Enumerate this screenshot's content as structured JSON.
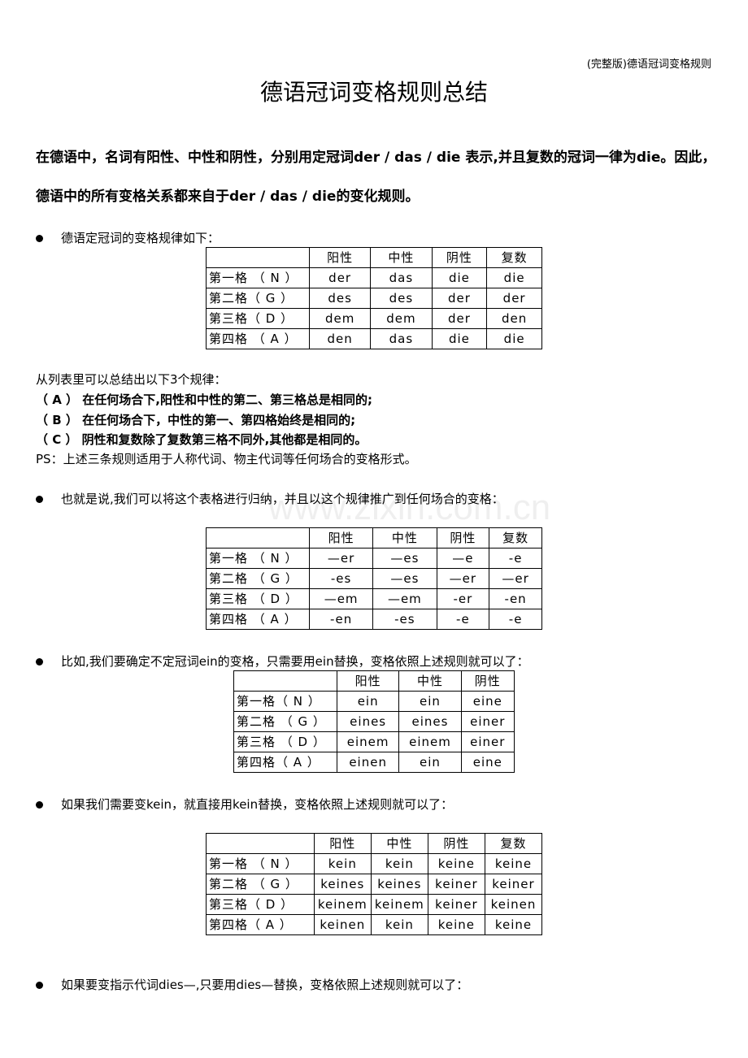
{
  "header_note": "(完整版)德语冠词变格规则",
  "title": "德语冠词变格规则总结",
  "intro": "在德语中，名词有阳性、中性和阴性，分别用定冠词der / das / die 表示,并且复数的冠词一律为die。因此，德语中的所有变格关系都来自于der / das / die的变化规则。",
  "watermark": "www.zixin.com.cn",
  "bullets": [
    "德语定冠词的变格规律如下：",
    "也就是说,我们可以将这个表格进行归纳，并且以这个规律推广到任何场合的变格：",
    "比如,我们要确定不定冠词ein的变格，只需要用ein替换，变格依照上述规则就可以了：",
    "如果我们需要变kein，就直接用kein替换，变格依照上述规则就可以了：",
    "如果要变指示代词dies—,只要用dies—替换，变格依照上述规则就可以了："
  ],
  "rules_intro": "从列表里可以总结出以下3个规律：",
  "rules": [
    "（ A ） 在任何场合下,阳性和中性的第二、第三格总是相同的;",
    "（ B ） 在任何场合下，中性的第一、第四格始终是相同的;",
    "（ C ） 阴性和复数除了复数第三格不同外,其他都是相同的。"
  ],
  "ps": "PS：上述三条规则适用于人称代词、物主代词等任何场合的变格形式。",
  "tables": [
    {
      "headers": [
        "",
        "阳性",
        "中性",
        "阴性",
        "复数"
      ],
      "rows": [
        [
          "第一格  （ N ）",
          "der",
          "das",
          "die",
          "die"
        ],
        [
          "第二格（ G ）",
          "des",
          "des",
          "der",
          "der"
        ],
        [
          "第三格（ D ）",
          "dem",
          "dem",
          "der",
          "den"
        ],
        [
          "第四格  （ A ）",
          "den",
          "das",
          "die",
          "die"
        ]
      ]
    },
    {
      "headers": [
        "",
        "阳性",
        "中性",
        "阴性",
        "复数"
      ],
      "rows": [
        [
          "第一格  （ N ）",
          "—er",
          "—es",
          "—e",
          "-e"
        ],
        [
          "第二格  （ G ）",
          "-es",
          "—es",
          "—er",
          "—er"
        ],
        [
          "第三格  （ D ）",
          "—em",
          "—em",
          "-er",
          "-en"
        ],
        [
          "第四格  （ A ）",
          "-en",
          "-es",
          "-e",
          "-e"
        ]
      ]
    },
    {
      "headers": [
        "",
        "阳性",
        "中性",
        "阴性"
      ],
      "rows": [
        [
          "第一格（ N ）",
          "ein",
          "ein",
          "eine"
        ],
        [
          "第二格  （ G ）",
          "eines",
          "eines",
          "einer"
        ],
        [
          "第三格  （ D ）",
          "einem",
          "einem",
          "einer"
        ],
        [
          "第四格（ A ）",
          "einen",
          "ein",
          "eine"
        ]
      ]
    },
    {
      "headers": [
        "",
        "阳性",
        "中性",
        "阴性",
        "复数"
      ],
      "rows": [
        [
          "第一格  （ N ）",
          "kein",
          "kein",
          "keine",
          "keine"
        ],
        [
          "第二格  （ G ）",
          "keines",
          "keines",
          "keiner",
          "keiner"
        ],
        [
          "第三格（ D ）",
          "keinem",
          "keinem",
          "keiner",
          "keinen"
        ],
        [
          "第四格（ A ）",
          "keinen",
          "kein",
          "keine",
          "keine"
        ]
      ]
    }
  ]
}
